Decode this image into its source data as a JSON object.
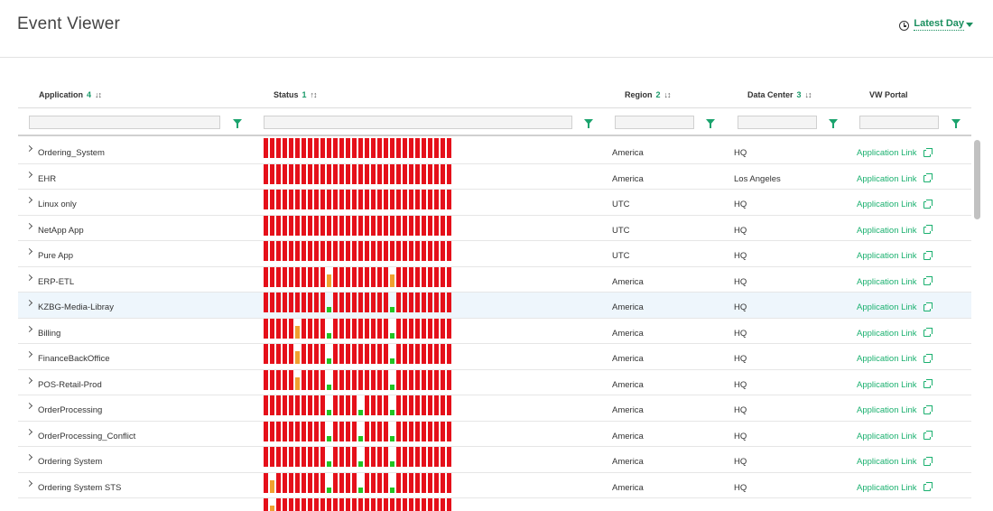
{
  "page_title": "Event Viewer",
  "time_range": {
    "label": "Latest Day"
  },
  "columns": [
    {
      "key": "application",
      "label": "Application",
      "count": "4",
      "sort": "↓↕"
    },
    {
      "key": "status",
      "label": "Status",
      "count": "1",
      "sort": "↑↕"
    },
    {
      "key": "region",
      "label": "Region",
      "count": "2",
      "sort": "↓↕"
    },
    {
      "key": "datacenter",
      "label": "Data Center",
      "count": "3",
      "sort": "↓↕"
    },
    {
      "key": "portal",
      "label": "VW Portal",
      "count": "",
      "sort": ""
    }
  ],
  "filters": {
    "application": "",
    "status": "",
    "region": "",
    "datacenter": "",
    "portal": ""
  },
  "colors": {
    "error": "#e5101a",
    "warning": "#f0a030",
    "ok": "#22c322",
    "accent": "#1ab06f"
  },
  "status_legend": {
    "r": "error",
    "o": "warning",
    "g": "ok"
  },
  "rows": [
    {
      "name": "Ordering_System",
      "region": "America",
      "datacenter": "HQ",
      "portal": "Application Link",
      "status": "rrrrrrrrrrrrrrrrrrrrrrrrrrrrrr"
    },
    {
      "name": "EHR",
      "region": "America",
      "datacenter": "Los Angeles",
      "portal": "Application Link",
      "status": "rrrrrrrrrrrrrrrrrrrrrrrrrrrrrr"
    },
    {
      "name": "Linux only",
      "region": "UTC",
      "datacenter": "HQ",
      "portal": "Application Link",
      "status": "rrrrrrrrrrrrrrrrrrrrrrrrrrrrrr"
    },
    {
      "name": "NetApp App",
      "region": "UTC",
      "datacenter": "HQ",
      "portal": "Application Link",
      "status": "rrrrrrrrrrrrrrrrrrrrrrrrrrrrrr"
    },
    {
      "name": "Pure App",
      "region": "UTC",
      "datacenter": "HQ",
      "portal": "Application Link",
      "status": "rrrrrrrrrrrrrrrrrrrrrrrrrrrrrr"
    },
    {
      "name": "ERP-ETL",
      "region": "America",
      "datacenter": "HQ",
      "portal": "Application Link",
      "status": "rrrrrrrrrrorrrrrrrrrorrrrrrrrr"
    },
    {
      "name": "KZBG-Media-Libray",
      "region": "America",
      "datacenter": "HQ",
      "portal": "Application Link",
      "status": "rrrrrrrrrrgrrrrrrrrrgrrrrrrrrr",
      "selected": true
    },
    {
      "name": "Billing",
      "region": "America",
      "datacenter": "HQ",
      "portal": "Application Link",
      "status": "rrrrrorrrrgrrrrrrrrrgrrrrrrrrr"
    },
    {
      "name": "FinanceBackOffice",
      "region": "America",
      "datacenter": "HQ",
      "portal": "Application Link",
      "status": "rrrrrorrrrgrrrrrrrrrgrrrrrrrrr"
    },
    {
      "name": "POS-Retail-Prod",
      "region": "America",
      "datacenter": "HQ",
      "portal": "Application Link",
      "status": "rrrrrorrrrgrrrrrrrrrgrrrrrrrrr"
    },
    {
      "name": "OrderProcessing",
      "region": "America",
      "datacenter": "HQ",
      "portal": "Application Link",
      "status": "rrrrrrrrrrgrrrrgrrrrgrrrrrrrrr"
    },
    {
      "name": "OrderProcessing_Conflict",
      "region": "America",
      "datacenter": "HQ",
      "portal": "Application Link",
      "status": "rrrrrrrrrrgrrrrgrrrrgrrrrrrrrr"
    },
    {
      "name": "Ordering System",
      "region": "America",
      "datacenter": "HQ",
      "portal": "Application Link",
      "status": "rrrrrrrrrrgrrrrgrrrrgrrrrrrrrr"
    },
    {
      "name": "Ordering System STS",
      "region": "America",
      "datacenter": "HQ",
      "portal": "Application Link",
      "status": "rorrrrrrrrgrrrrgrrrrgrrrrrrrrr"
    },
    {
      "name": "",
      "region": "",
      "datacenter": "",
      "portal": "",
      "status": "rorrrrrrrrrrrrrrrrrrrrrrrrrrrr",
      "partial": true
    }
  ]
}
